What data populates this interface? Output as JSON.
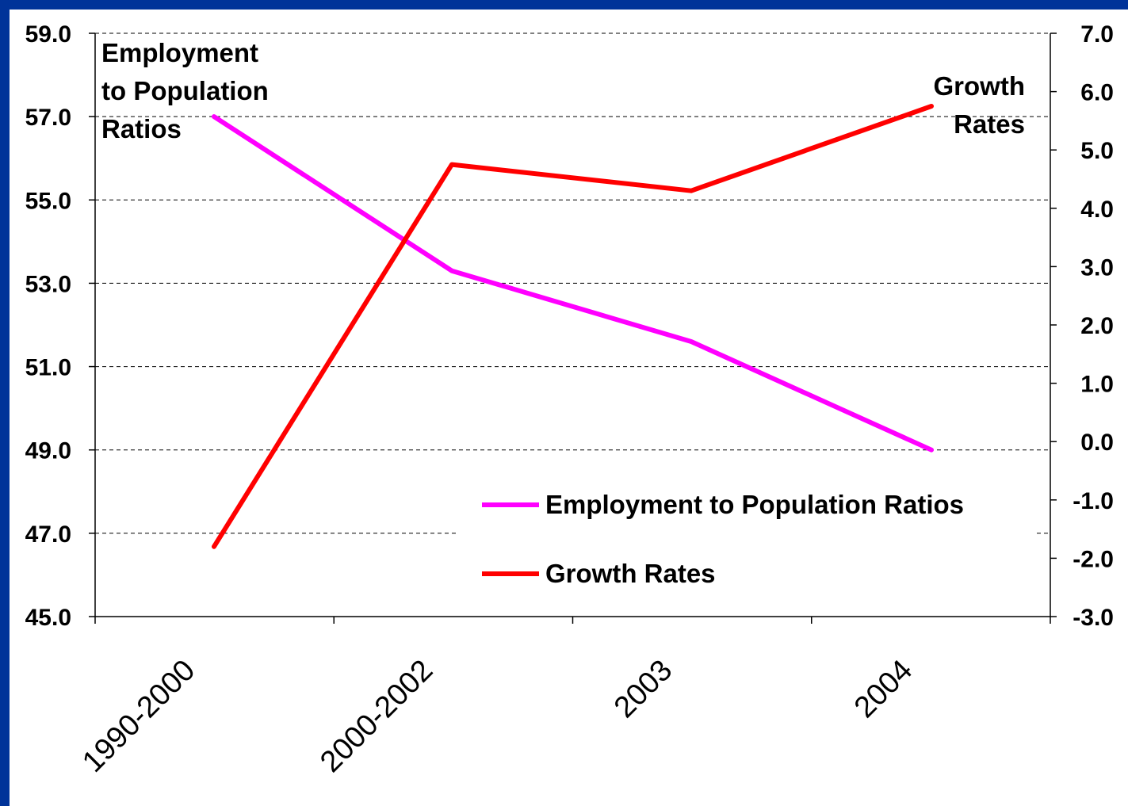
{
  "frame_color": "#003399",
  "chart_data": {
    "type": "line",
    "categories": [
      "1990-2000",
      "2000-2002",
      "2003",
      "2004"
    ],
    "left_axis_label": [
      "Employment",
      "to Population",
      "Ratios"
    ],
    "right_axis_label": [
      "Growth",
      "Rates"
    ],
    "y_left": {
      "min": 45.0,
      "max": 59.0,
      "step": 2.0,
      "ticks": [
        "45.0",
        "47.0",
        "49.0",
        "51.0",
        "53.0",
        "55.0",
        "57.0",
        "59.0"
      ]
    },
    "y_right": {
      "min": -3.0,
      "max": 7.0,
      "step": 1.0,
      "ticks": [
        "-3.0",
        "-2.0",
        "-1.0",
        "0.0",
        "1.0",
        "2.0",
        "3.0",
        "4.0",
        "5.0",
        "6.0",
        "7.0"
      ]
    },
    "gridlines": true,
    "legend_position": "bottom-right",
    "series": [
      {
        "name": "Employment to Population Ratios",
        "axis": "left",
        "color": "#ff00ff",
        "values": [
          57.0,
          53.3,
          51.6,
          49.0
        ]
      },
      {
        "name": "Growth Rates",
        "axis": "right",
        "color": "#ff0000",
        "values": [
          -1.8,
          4.75,
          4.3,
          5.75
        ]
      }
    ]
  }
}
